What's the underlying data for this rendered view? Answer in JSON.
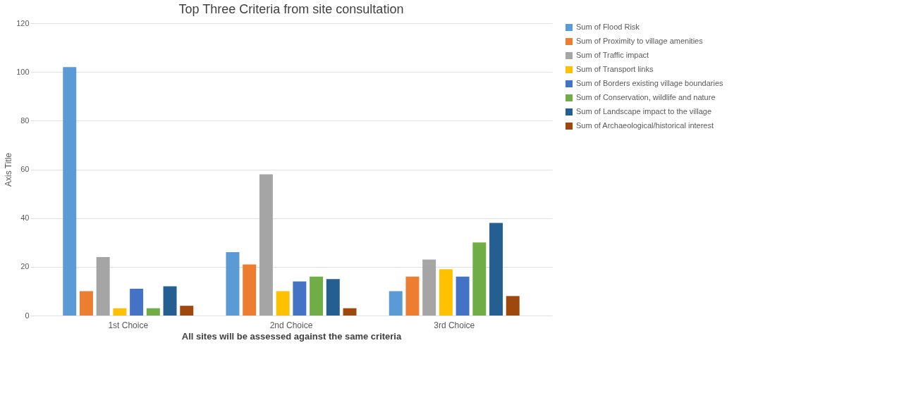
{
  "chart_data": {
    "type": "bar",
    "title": "Top Three Criteria from site consultation",
    "xlabel": "All sites will be assessed against the same criteria",
    "ylabel": "Axis Title",
    "categories": [
      "1st Choice",
      "2nd Choice",
      "3rd Choice"
    ],
    "series": [
      {
        "name": "Sum of Flood Risk",
        "color": "#5b9bd5",
        "values": [
          102,
          26,
          10
        ]
      },
      {
        "name": "Sum of Proximity to village amenities",
        "color": "#ed7d31",
        "values": [
          10,
          21,
          16
        ]
      },
      {
        "name": "Sum of Traffic impact",
        "color": "#a5a5a5",
        "values": [
          24,
          58,
          23
        ]
      },
      {
        "name": "Sum of Transport links",
        "color": "#ffc000",
        "values": [
          3,
          10,
          19
        ]
      },
      {
        "name": "Sum of Borders existing village boundaries",
        "color": "#4472c4",
        "values": [
          11,
          14,
          16
        ]
      },
      {
        "name": "Sum of Conservation, wildlife and nature",
        "color": "#70ad47",
        "values": [
          3,
          16,
          30
        ]
      },
      {
        "name": "Sum of Landscape impact to the village",
        "color": "#255e91",
        "values": [
          12,
          15,
          38
        ]
      },
      {
        "name": "Sum of Archaeological/historical interest",
        "color": "#9e480e",
        "values": [
          4,
          3,
          8
        ]
      }
    ],
    "ylim": [
      0,
      120
    ],
    "yticks": [
      0,
      20,
      40,
      60,
      80,
      100,
      120
    ],
    "grid": "y",
    "legend": "right"
  }
}
